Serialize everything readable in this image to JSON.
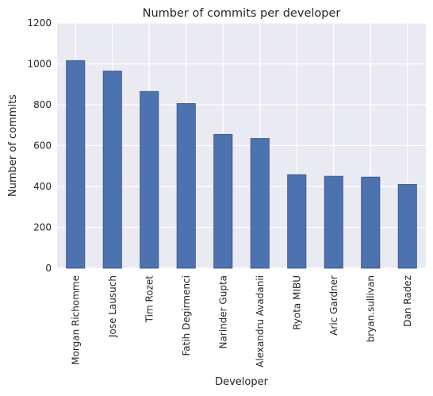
{
  "chart_data": {
    "type": "bar",
    "title": "Number of commits per developer",
    "xlabel": "Developer",
    "ylabel": "Number of commits",
    "ylim": [
      0,
      1200
    ],
    "yticks": [
      0,
      200,
      400,
      600,
      800,
      1000,
      1200
    ],
    "grid": true,
    "bar_color": "#4c72b0",
    "categories": [
      "Morgan Richomme",
      "Jose Lausuch",
      "Tim Rozet",
      "Fatih Degirmenci",
      "Narinder Gupta",
      "Alexandru Avadanii",
      "Ryota MIBU",
      "Aric Gardner",
      "bryan.sullivan",
      "Dan Radez"
    ],
    "values": [
      1016,
      965,
      865,
      806,
      655,
      635,
      458,
      450,
      446,
      410
    ]
  }
}
